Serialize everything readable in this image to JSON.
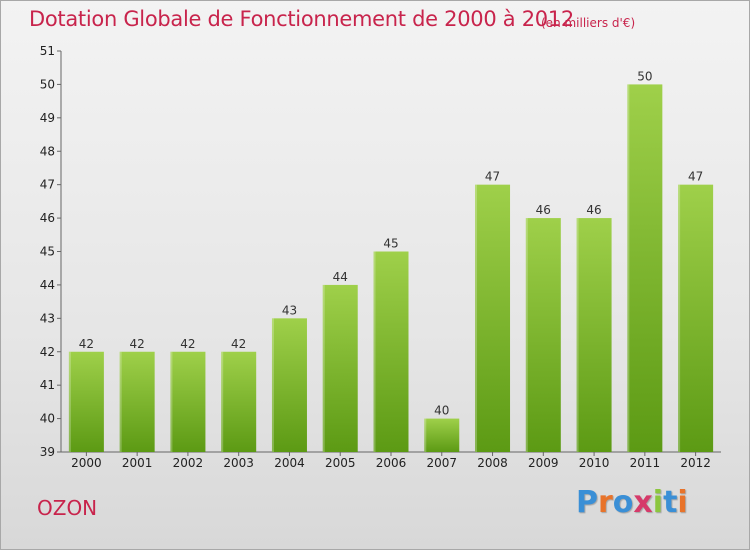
{
  "title": "Dotation Globale de Fonctionnement de 2000 à 2012",
  "unit": "(en milliers d'€)",
  "commune": "OZON",
  "logo": {
    "text": "Proxiti",
    "letter_colors": [
      "#3a8fd6",
      "#e8732a",
      "#3a8fd6",
      "#d63a6a",
      "#8cc63e",
      "#3a8fd6",
      "#e8732a"
    ]
  },
  "colors": {
    "title": "#c8244c",
    "bar_top": "#9fd04a",
    "bar_bottom": "#5c9a14"
  },
  "chart_data": {
    "type": "bar",
    "categories": [
      "2000",
      "2001",
      "2002",
      "2003",
      "2004",
      "2005",
      "2006",
      "2007",
      "2008",
      "2009",
      "2010",
      "2011",
      "2012"
    ],
    "values": [
      42,
      42,
      42,
      42,
      43,
      44,
      45,
      40,
      47,
      46,
      46,
      50,
      47
    ],
    "ylim": [
      39,
      51
    ],
    "yticks": [
      39,
      40,
      41,
      42,
      43,
      44,
      45,
      46,
      47,
      48,
      49,
      50,
      51
    ],
    "grid": false,
    "legend": "none"
  }
}
